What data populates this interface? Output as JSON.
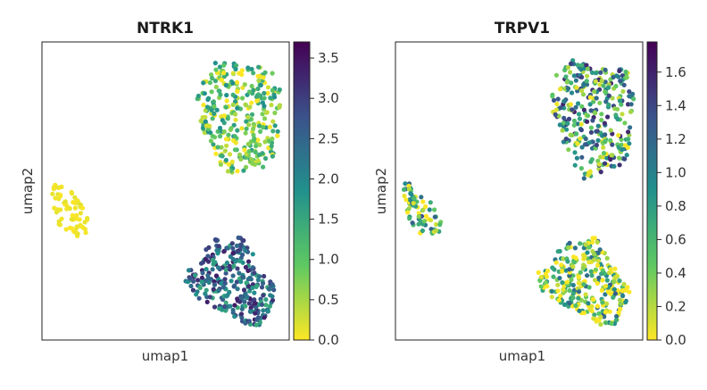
{
  "chart_data": [
    {
      "type": "scatter",
      "title": "NTRK1",
      "xlabel": "umap1",
      "ylabel": "umap2",
      "colormap": "viridis_r",
      "colorbar": {
        "min": 0.0,
        "max": 3.7,
        "ticks": [
          "0.0",
          "0.5",
          "1.0",
          "1.5",
          "2.0",
          "2.5",
          "3.0",
          "3.5"
        ]
      },
      "clusters": [
        {
          "name": "left",
          "mean_value": 0.05
        },
        {
          "name": "upper-right",
          "mean_value": 0.9
        },
        {
          "name": "lower-right",
          "mean_value": 2.4
        }
      ]
    },
    {
      "type": "scatter",
      "title": "TRPV1",
      "xlabel": "umap1",
      "ylabel": "umap2",
      "colormap": "viridis_r",
      "colorbar": {
        "min": 0.0,
        "max": 1.78,
        "ticks": [
          "0.0",
          "0.2",
          "0.4",
          "0.6",
          "0.8",
          "1.0",
          "1.2",
          "1.4",
          "1.6"
        ]
      },
      "clusters": [
        {
          "name": "left",
          "mean_value": 0.55
        },
        {
          "name": "upper-right",
          "mean_value": 0.8
        },
        {
          "name": "lower-right",
          "mean_value": 0.45
        }
      ]
    }
  ]
}
